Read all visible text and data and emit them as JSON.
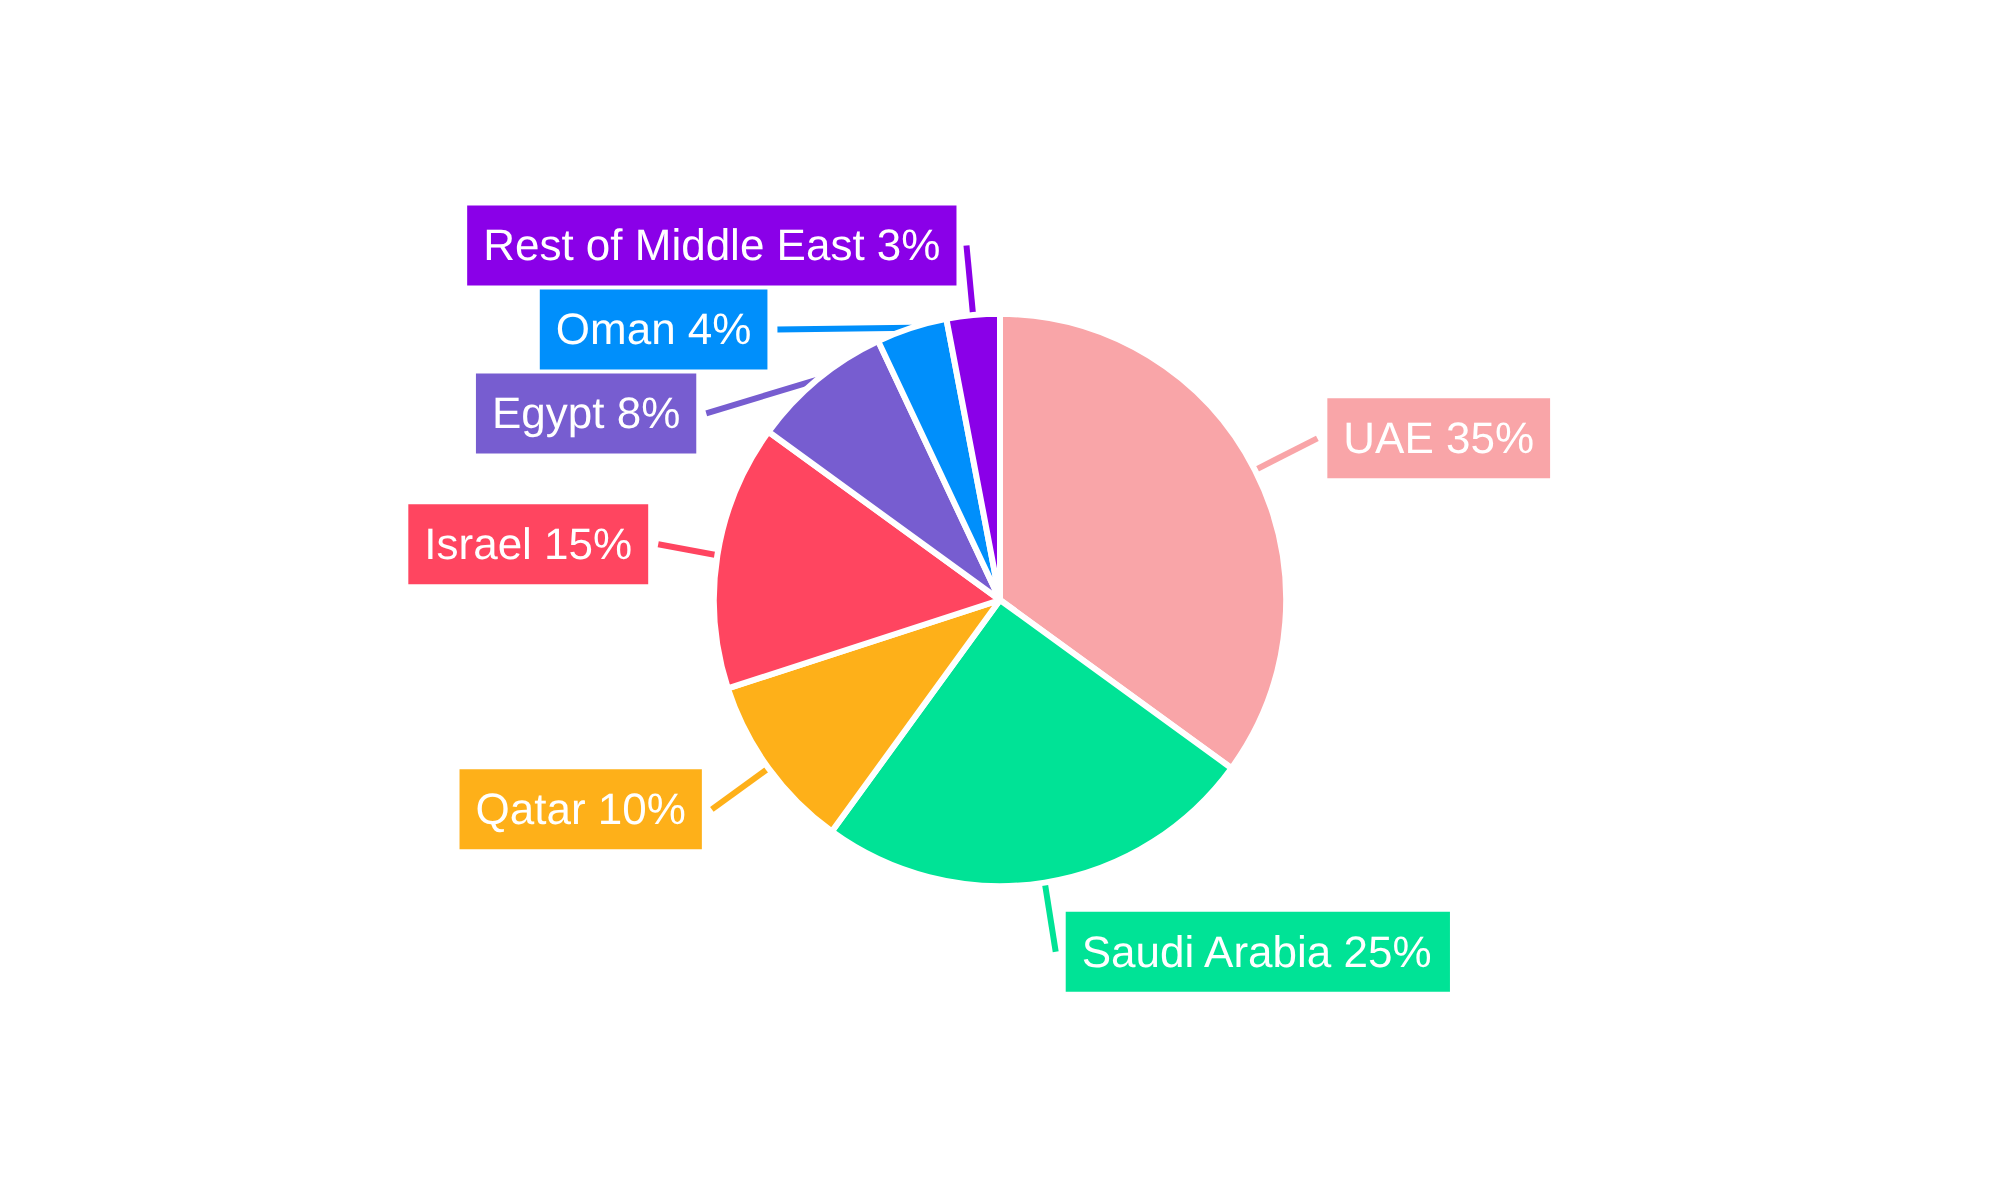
{
  "chart_data": {
    "type": "pie",
    "categories": [
      "UAE",
      "Saudi Arabia",
      "Qatar",
      "Israel",
      "Egypt",
      "Oman",
      "Rest of Middle East"
    ],
    "values": [
      35,
      25,
      10,
      15,
      8,
      4,
      3
    ],
    "value_labels": [
      "35%",
      "25%",
      "10%",
      "15%",
      "8%",
      "4%",
      "3%"
    ],
    "colors": [
      "#f9a5a8",
      "#00e396",
      "#feb019",
      "#ff4560",
      "#775dd0",
      "#008ffb",
      "#8a00e8"
    ],
    "legend": false
  }
}
